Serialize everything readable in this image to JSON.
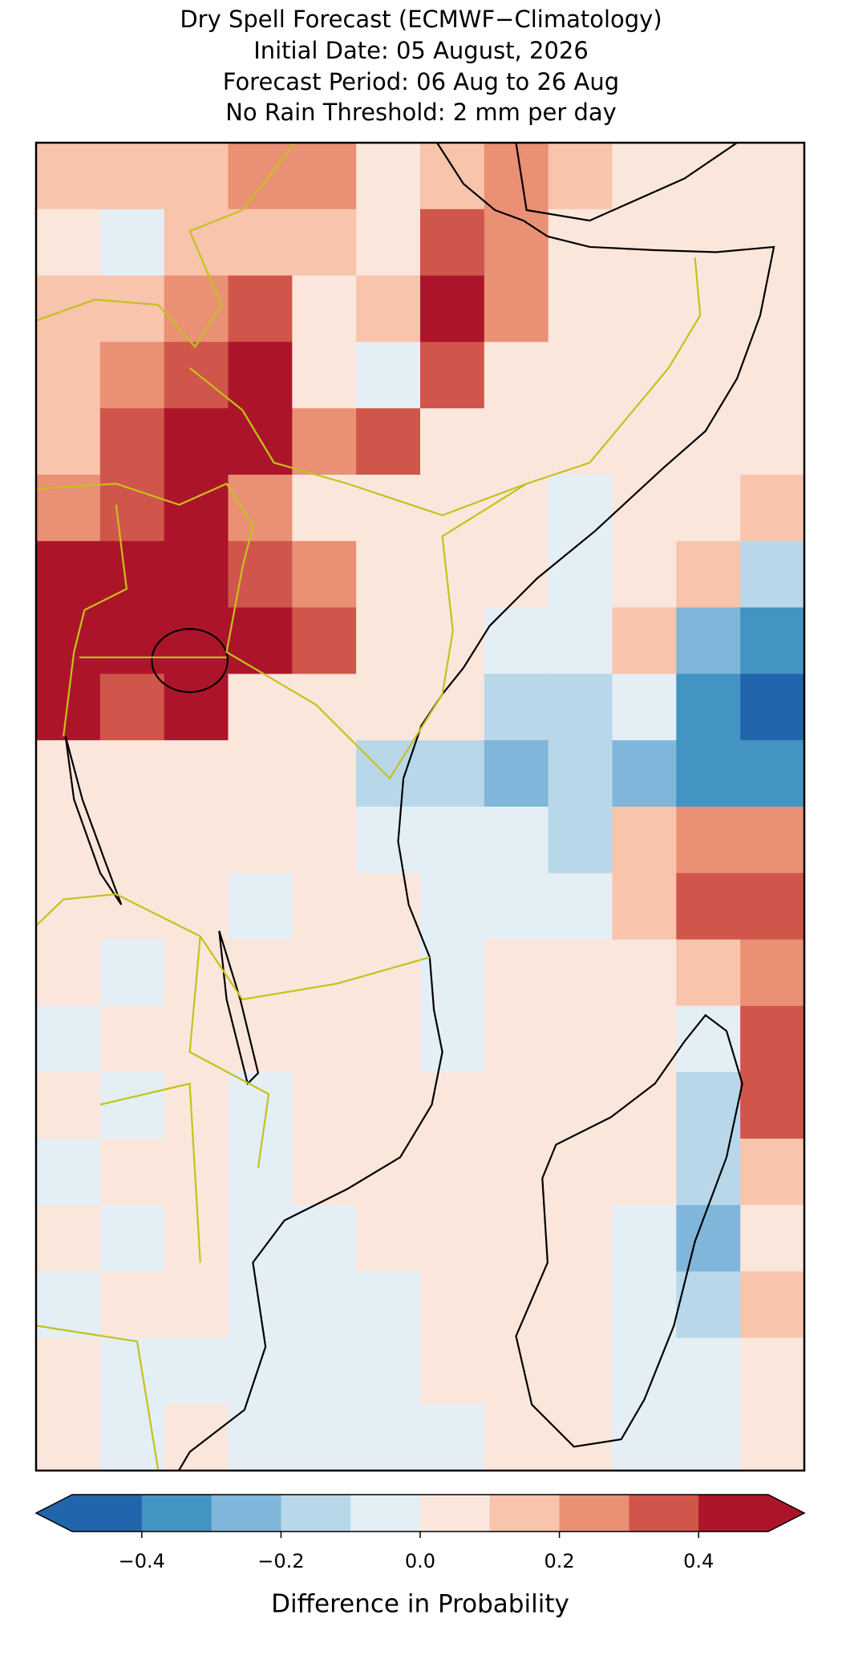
{
  "chart_data": {
    "type": "map",
    "title": [
      "Dry Spell Forecast (ECMWF−Climatology)",
      "Initial Date: 05 August, 2026",
      "Forecast Period: 06 Aug to 26 Aug",
      "No Rain Threshold: 2 mm per day"
    ],
    "colorbar_label": "Difference in Probability",
    "levels": [
      -0.5,
      -0.4,
      -0.3,
      -0.2,
      -0.1,
      0,
      0.1,
      0.2,
      0.3,
      0.4,
      0.5
    ],
    "colors": [
      "#2166ac",
      "#4393c3",
      "#7fb6d9",
      "#b8d8ea",
      "#e4eef5",
      "#fbe6dc",
      "#f8c4ab",
      "#ea9075",
      "#d0554a",
      "#ac1529"
    ],
    "colorbar_ticks": [
      {
        "value": -0.4,
        "label": "−0.4"
      },
      {
        "value": -0.2,
        "label": "−0.2"
      },
      {
        "value": 0,
        "label": "0.0"
      },
      0.2,
      0.4
    ],
    "values": [
      [
        0.15,
        0.15,
        0.15,
        0.25,
        0.25,
        0.05,
        0.15,
        0.25,
        0.15,
        0.05,
        0.05,
        0.05
      ],
      [
        0.05,
        -0.05,
        0.15,
        0.15,
        0.15,
        0.05,
        0.35,
        0.25,
        0.05,
        0.05,
        0.05,
        0.05
      ],
      [
        0.15,
        0.15,
        0.25,
        0.35,
        0.05,
        0.15,
        0.45,
        0.25,
        0.05,
        0.05,
        0.05,
        0.05
      ],
      [
        0.15,
        0.25,
        0.35,
        0.45,
        0.05,
        -0.05,
        0.35,
        0.05,
        0.05,
        0.05,
        0.05,
        0.05
      ],
      [
        0.15,
        0.35,
        0.45,
        0.45,
        0.25,
        0.35,
        0.05,
        0.05,
        0.05,
        0.05,
        0.05,
        0.05
      ],
      [
        0.25,
        0.35,
        0.45,
        0.25,
        0.05,
        0.05,
        0.05,
        0.05,
        -0.05,
        0.05,
        0.05,
        0.15
      ],
      [
        0.45,
        0.45,
        0.45,
        0.35,
        0.25,
        0.05,
        0.05,
        0.05,
        -0.05,
        0.05,
        0.15,
        -0.15
      ],
      [
        0.45,
        0.45,
        0.45,
        0.45,
        0.35,
        0.05,
        0.05,
        -0.05,
        -0.05,
        0.15,
        -0.25,
        -0.35
      ],
      [
        0.45,
        0.35,
        0.45,
        0.05,
        0.05,
        0.05,
        0.05,
        -0.15,
        -0.15,
        -0.05,
        -0.35,
        -0.45
      ],
      [
        0.05,
        0.05,
        0.05,
        0.05,
        0.05,
        -0.15,
        -0.15,
        -0.25,
        -0.15,
        -0.25,
        -0.35,
        -0.35
      ],
      [
        0.05,
        0.05,
        0.05,
        0.05,
        0.05,
        -0.05,
        -0.05,
        -0.05,
        -0.15,
        0.15,
        0.25,
        0.25
      ],
      [
        0.05,
        0.05,
        0.05,
        -0.05,
        0.05,
        0.05,
        -0.05,
        -0.05,
        -0.05,
        0.15,
        0.35,
        0.35
      ],
      [
        0.05,
        -0.05,
        0.05,
        0.05,
        0.05,
        0.05,
        -0.05,
        0.05,
        0.05,
        0.05,
        0.15,
        0.25
      ],
      [
        -0.05,
        0.05,
        0.05,
        0.05,
        0.05,
        0.05,
        -0.05,
        0.05,
        0.05,
        0.05,
        -0.05,
        0.35
      ],
      [
        0.05,
        -0.05,
        0.05,
        -0.05,
        0.05,
        0.05,
        0.05,
        0.05,
        0.05,
        0.05,
        -0.15,
        0.35
      ],
      [
        -0.05,
        0.05,
        0.05,
        -0.05,
        0.05,
        0.05,
        0.05,
        0.05,
        0.05,
        0.05,
        -0.15,
        0.15
      ],
      [
        0.05,
        -0.05,
        0.05,
        -0.05,
        -0.05,
        0.05,
        0.05,
        0.05,
        0.05,
        -0.05,
        -0.25,
        0.05
      ],
      [
        -0.05,
        0.05,
        0.05,
        -0.05,
        -0.05,
        -0.05,
        0.05,
        0.05,
        0.05,
        -0.05,
        -0.15,
        0.15
      ],
      [
        0.05,
        -0.05,
        -0.05,
        -0.05,
        -0.05,
        -0.05,
        0.05,
        0.05,
        0.05,
        -0.05,
        -0.05,
        0.05
      ],
      [
        0.05,
        -0.05,
        0.05,
        -0.05,
        -0.05,
        -0.05,
        -0.05,
        0.05,
        0.05,
        -0.05,
        -0.05,
        0.05
      ]
    ]
  }
}
